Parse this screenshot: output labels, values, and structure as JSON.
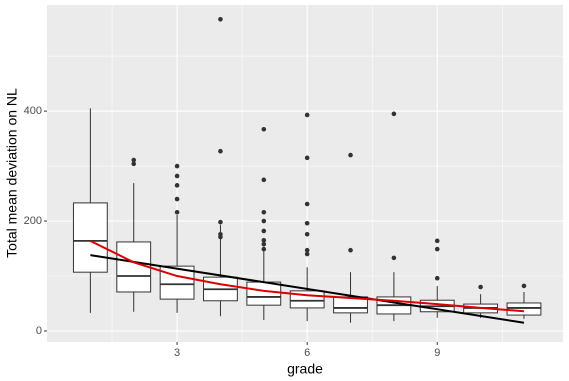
{
  "chart_data": {
    "type": "boxplot",
    "x_label": "grade",
    "y_label": "Total mean deviation on NL",
    "x": [
      1,
      2,
      3,
      4,
      5,
      6,
      7,
      8,
      9,
      10,
      11
    ],
    "boxes": [
      {
        "min": 33,
        "q1": 107,
        "median": 164,
        "q3": 233,
        "max": 405,
        "outliers": []
      },
      {
        "min": 35,
        "q1": 71,
        "median": 100,
        "q3": 162,
        "max": 269,
        "outliers": [
          311,
          304
        ]
      },
      {
        "min": 33,
        "q1": 58,
        "median": 85,
        "q3": 118,
        "max": 211,
        "outliers": [
          300,
          282,
          265,
          240,
          216
        ]
      },
      {
        "min": 27,
        "q1": 55,
        "median": 76,
        "q3": 98,
        "max": 193,
        "outliers": [
          567,
          327,
          198,
          176,
          171
        ]
      },
      {
        "min": 20,
        "q1": 47,
        "median": 62,
        "q3": 89,
        "max": 147,
        "outliers": [
          367,
          275,
          216,
          200,
          182,
          165,
          158,
          149
        ]
      },
      {
        "min": 18,
        "q1": 42,
        "median": 55,
        "q3": 73,
        "max": 116,
        "outliers": [
          393,
          315,
          231,
          196,
          176,
          147,
          140
        ]
      },
      {
        "min": 15,
        "q1": 33,
        "median": 42,
        "q3": 62,
        "max": 107,
        "outliers": [
          320,
          147
        ]
      },
      {
        "min": 18,
        "q1": 31,
        "median": 47,
        "q3": 62,
        "max": 107,
        "outliers": [
          395,
          133
        ]
      },
      {
        "min": 24,
        "q1": 35,
        "median": 45,
        "q3": 56,
        "max": 82,
        "outliers": [
          164,
          149,
          96
        ]
      },
      {
        "min": 24,
        "q1": 33,
        "median": 42,
        "q3": 49,
        "max": 67,
        "outliers": [
          80
        ]
      },
      {
        "min": 22,
        "q1": 29,
        "median": 42,
        "q3": 51,
        "max": 71,
        "outliers": [
          82
        ]
      }
    ],
    "box_color": "#333333",
    "box_fill": "#ffffff",
    "outlier_color": "#333333",
    "lines": [
      {
        "color": "#000000",
        "x": [
          1,
          11
        ],
        "values": [
          138,
          15
        ]
      },
      {
        "color": "#dd0000",
        "x": [
          1,
          2,
          3,
          4,
          5,
          6,
          7,
          8,
          9,
          10,
          11
        ],
        "values": [
          164,
          125,
          100,
          85,
          73,
          65,
          60,
          55,
          49,
          42,
          36
        ]
      }
    ],
    "xlim": [
      0,
      11.9
    ],
    "ylim": [
      -20,
      593
    ],
    "xticks": [
      3,
      6,
      9
    ],
    "yticks": [
      0,
      200,
      400
    ],
    "grid": true
  }
}
